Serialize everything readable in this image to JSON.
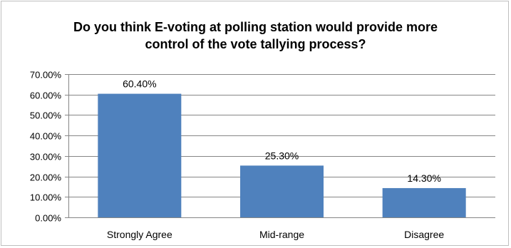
{
  "chart_data": {
    "type": "bar",
    "title_lines": [
      "Do you think E-voting at polling station would provide more",
      "control of the vote tallying process?"
    ],
    "categories": [
      "Strongly Agree",
      "Mid-range",
      "Disagree"
    ],
    "values": [
      60.4,
      25.3,
      14.3
    ],
    "data_labels": [
      "60.40%",
      "25.30%",
      "14.30%"
    ],
    "yticks": [
      0,
      10,
      20,
      30,
      40,
      50,
      60,
      70
    ],
    "ytick_labels": [
      "0.00%",
      "10.00%",
      "20.00%",
      "30.00%",
      "40.00%",
      "50.00%",
      "60.00%",
      "70.00%"
    ],
    "ylim": [
      0,
      70
    ],
    "xlabel": "",
    "ylabel": "",
    "grid": true,
    "bar_color": "#4f81bd",
    "grid_color": "#868686"
  }
}
